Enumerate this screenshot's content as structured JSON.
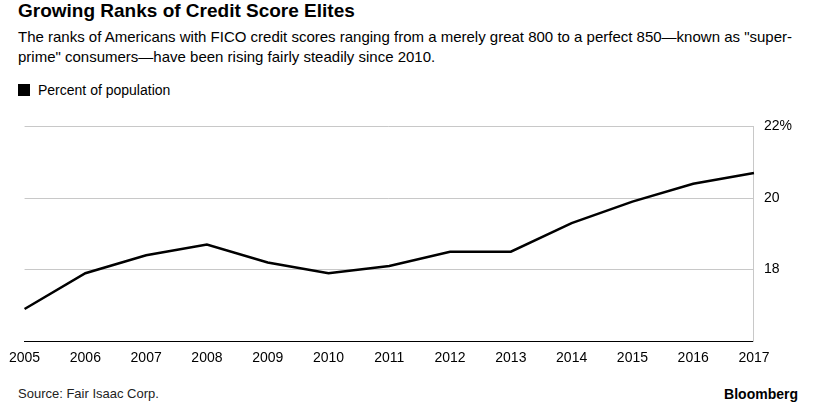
{
  "chart_data": {
    "type": "line",
    "title": "Growing Ranks of Credit Score Elites",
    "subtitle": "The ranks of Americans with FICO credit scores ranging from a merely great 800 to a perfect 850—known as \"super-prime\" consumers—have been rising fairly steadily since 2010.",
    "source": "Source: Fair Isaac Corp.",
    "annotations": [
      "Bloomberg"
    ],
    "categories": [
      "2005",
      "2006",
      "2007",
      "2008",
      "2009",
      "2010",
      "2011",
      "2012",
      "2013",
      "2014",
      "2015",
      "2016",
      "2017"
    ],
    "series": [
      {
        "name": "Percent of population",
        "color": "#000000",
        "values": [
          16.9,
          17.9,
          18.4,
          18.7,
          18.2,
          17.9,
          18.1,
          18.5,
          18.5,
          19.3,
          19.9,
          20.4,
          20.7
        ]
      }
    ],
    "ylim": [
      16,
      22
    ],
    "yticks": [
      18,
      20,
      {
        "value": 22,
        "label": "22%"
      }
    ],
    "grid": true
  }
}
